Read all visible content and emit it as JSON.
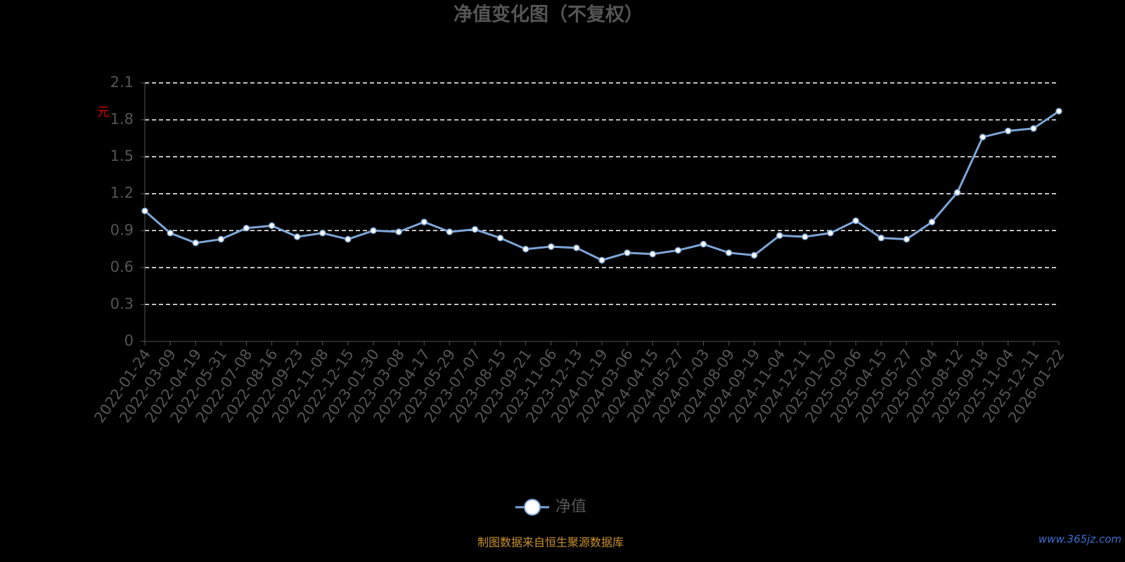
{
  "chart_data": {
    "type": "line",
    "title": "净值变化图（不复权）",
    "y_label": "元",
    "categories": [
      "2022-01-24",
      "2022-03-09",
      "2022-04-19",
      "2022-05-31",
      "2022-07-08",
      "2022-08-16",
      "2022-09-23",
      "2022-11-08",
      "2022-12-15",
      "2023-01-30",
      "2023-03-08",
      "2023-04-17",
      "2023-05-29",
      "2023-07-07",
      "2023-08-15",
      "2023-09-21",
      "2023-11-06",
      "2023-12-13",
      "2024-01-19",
      "2024-03-06",
      "2024-04-15",
      "2024-05-27",
      "2024-07-03",
      "2024-08-09",
      "2024-09-19",
      "2024-11-04",
      "2024-12-11",
      "2025-01-20",
      "2025-03-06",
      "2025-04-15",
      "2025-05-27",
      "2025-07-04",
      "2025-08-12",
      "2025-09-18",
      "2025-11-04",
      "2025-12-11",
      "2026-01-22"
    ],
    "series": [
      {
        "name": "净值",
        "color": "#7ea6d8",
        "values": [
          1.06,
          0.88,
          0.8,
          0.83,
          0.92,
          0.94,
          0.85,
          0.88,
          0.83,
          0.9,
          0.89,
          0.97,
          0.89,
          0.91,
          0.84,
          0.75,
          0.77,
          0.76,
          0.66,
          0.72,
          0.71,
          0.74,
          0.79,
          0.72,
          0.7,
          0.86,
          0.85,
          0.88,
          0.98,
          0.84,
          0.83,
          0.97,
          1.21,
          1.66,
          1.71,
          1.73,
          1.87
        ]
      }
    ],
    "ylim": [
      0,
      2.1
    ],
    "yticks": [
      0,
      0.3,
      0.6,
      0.9,
      1.2,
      1.5,
      1.8,
      2.1
    ],
    "grid": true,
    "legend": "bottom",
    "footer": "制图数据来自恒生聚源数据库",
    "watermark": "www.365jz.com"
  }
}
